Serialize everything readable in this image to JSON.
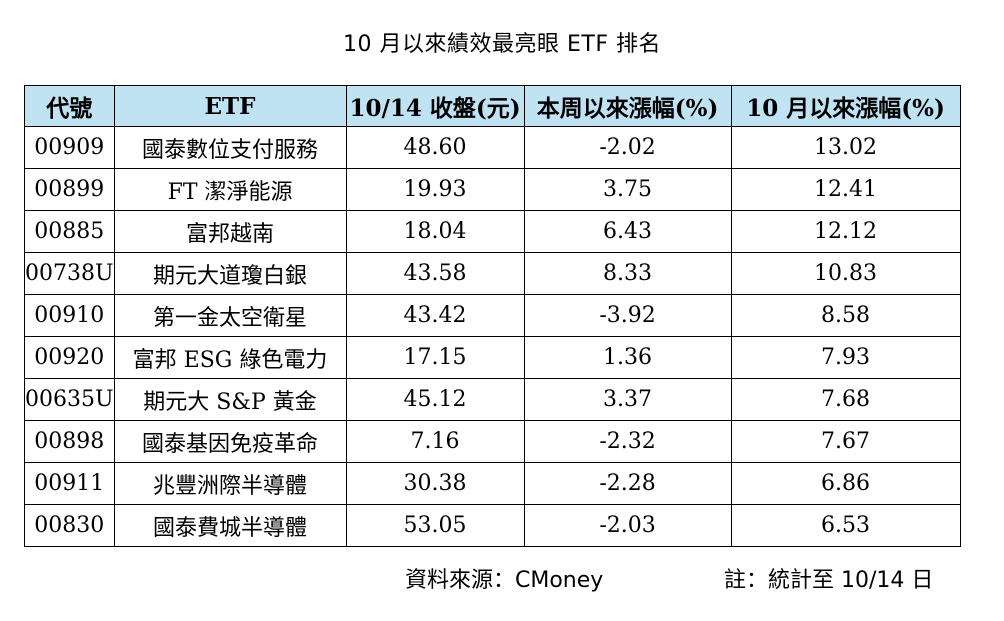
{
  "title": "10 月以來績效最亮眼 ETF 排名",
  "chart_data": {
    "type": "table",
    "title": "10 月以來績效最亮眼 ETF 排名",
    "columns": [
      "代號",
      "ETF",
      "10/14 收盤(元)",
      "本周以來漲幅(%)",
      "10 月以來漲幅(%)"
    ],
    "rows": [
      [
        "00909",
        "國泰數位支付服務",
        "48.60",
        "-2.02",
        "13.02"
      ],
      [
        "00899",
        "FT 潔淨能源",
        "19.93",
        "3.75",
        "12.41"
      ],
      [
        "00885",
        "富邦越南",
        "18.04",
        "6.43",
        "12.12"
      ],
      [
        "00738U",
        "期元大道瓊白銀",
        "43.58",
        "8.33",
        "10.83"
      ],
      [
        "00910",
        "第一金太空衛星",
        "43.42",
        "-3.92",
        "8.58"
      ],
      [
        "00920",
        "富邦 ESG 綠色電力",
        "17.15",
        "1.36",
        "7.93"
      ],
      [
        "00635U",
        "期元大 S&P 黃金",
        "45.12",
        "3.37",
        "7.68"
      ],
      [
        "00898",
        "國泰基因免疫革命",
        "7.16",
        "-2.32",
        "7.67"
      ],
      [
        "00911",
        "兆豐洲際半導體",
        "30.38",
        "-2.28",
        "6.86"
      ],
      [
        "00830",
        "國泰費城半導體",
        "53.05",
        "-2.03",
        "6.53"
      ]
    ]
  },
  "source": "資料來源：CMoney",
  "note": "註：統計至 10/14 日",
  "colors": {
    "header_bg": "#bfe3f3",
    "border": "#000000"
  }
}
